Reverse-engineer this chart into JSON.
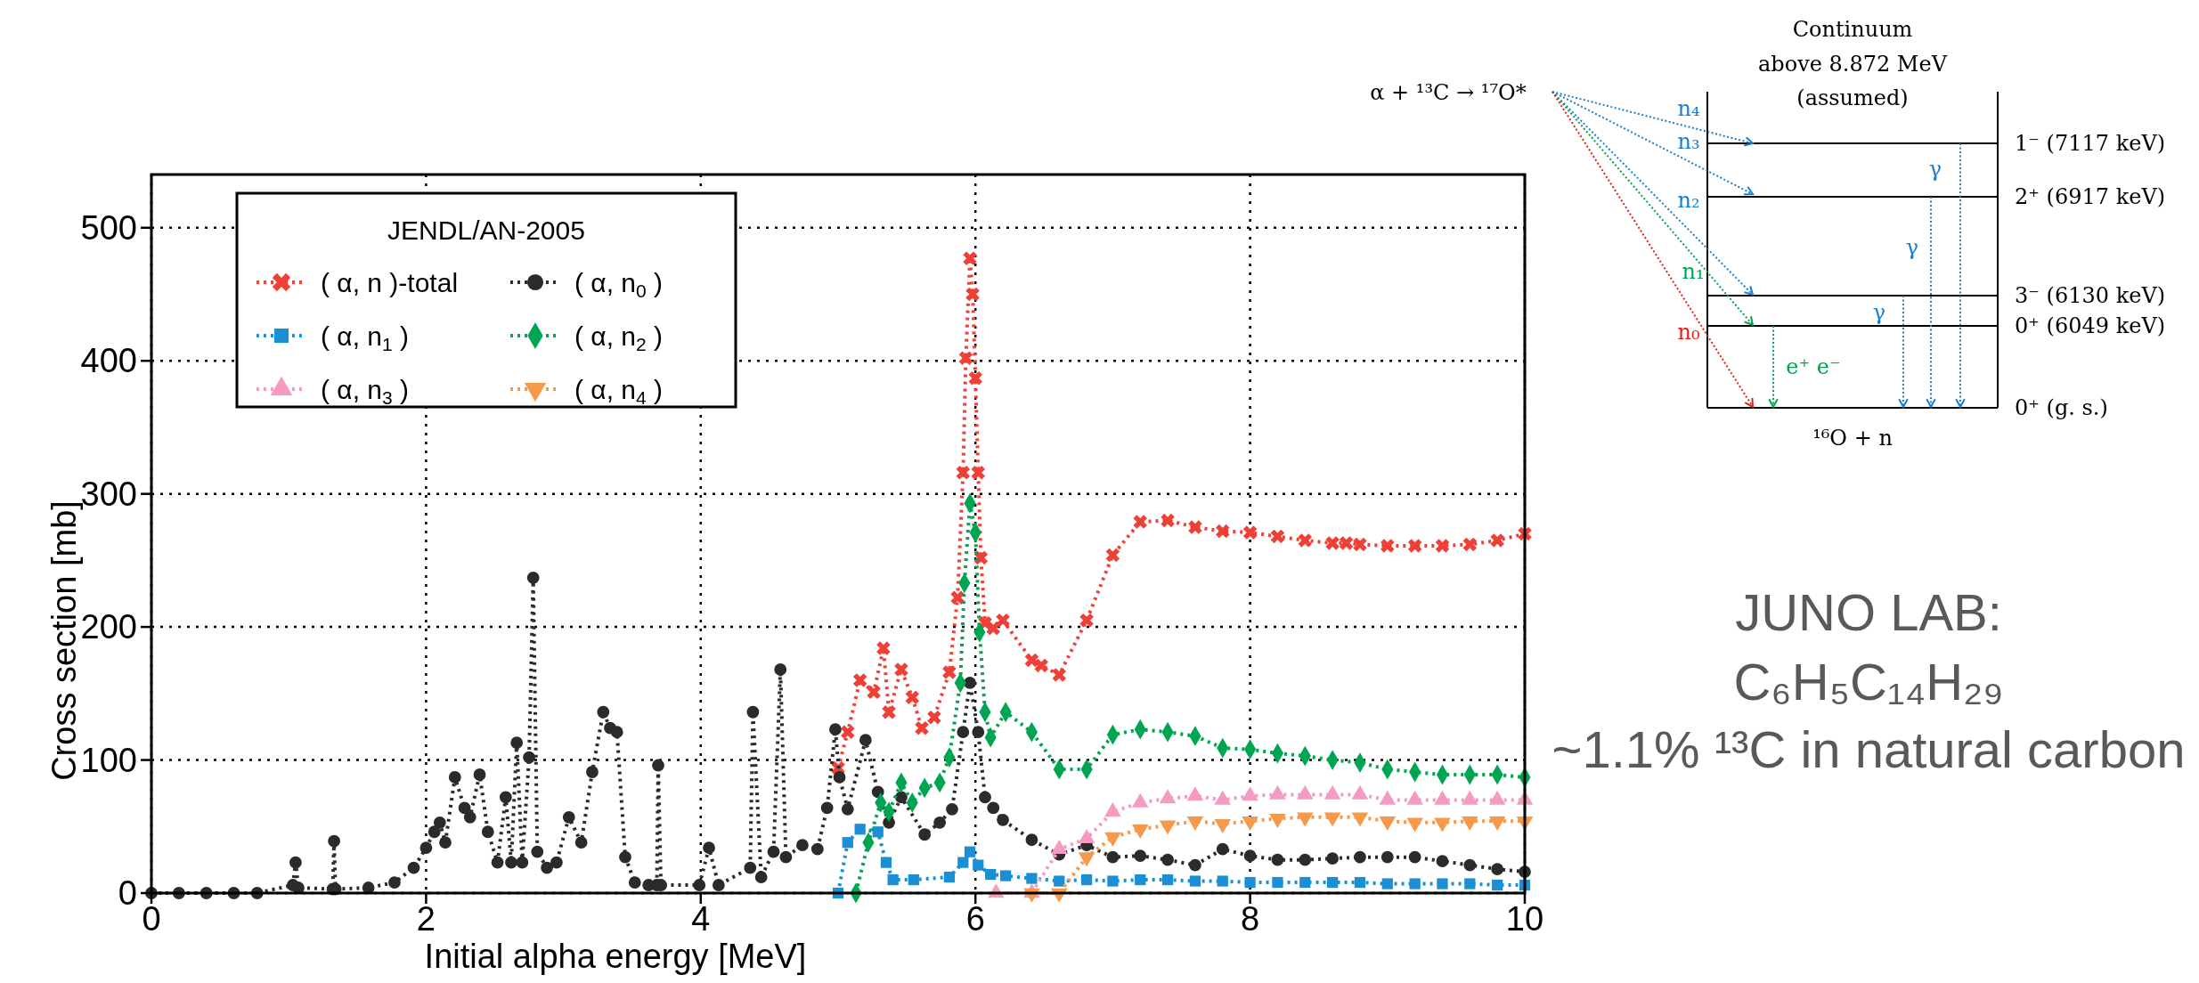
{
  "chart_data": [
    {
      "type": "line",
      "xlabel": "Initial alpha energy [MeV]",
      "ylabel": "Cross section [mb]",
      "legend_title": "JENDL/AN-2005",
      "legend": "top left",
      "grid": true,
      "line_style": "dotted",
      "xlim": [
        0,
        10
      ],
      "ylim": [
        0,
        540
      ],
      "xticks": [
        0,
        2,
        4,
        6,
        8,
        10
      ],
      "yticks": [
        0,
        100,
        200,
        300,
        400,
        500
      ],
      "series": [
        {
          "name": "( α, n )-total",
          "color": "#ee4036",
          "marker": "cross",
          "x": [
            5.0,
            5.07,
            5.16,
            5.26,
            5.33,
            5.37,
            5.46,
            5.54,
            5.61,
            5.7,
            5.81,
            5.87,
            5.91,
            5.93,
            5.96,
            5.98,
            6.0,
            6.02,
            6.04,
            6.07,
            6.13,
            6.2,
            6.41,
            6.48,
            6.61,
            6.81,
            7.0,
            7.2,
            7.4,
            7.6,
            7.8,
            8.0,
            8.2,
            8.4,
            8.6,
            8.7,
            8.8,
            9.0,
            9.2,
            9.4,
            9.6,
            9.8,
            10.0
          ],
          "values": [
            94,
            121,
            160,
            151,
            184,
            136,
            168,
            147,
            124,
            132,
            166,
            222,
            316,
            402,
            477,
            450,
            387,
            316,
            252,
            203,
            199,
            205,
            175,
            171,
            164,
            205,
            254,
            279,
            280,
            275,
            272,
            271,
            268,
            265,
            263,
            263,
            262,
            261,
            261,
            261,
            262,
            265,
            270
          ]
        },
        {
          "name": "( α, n$_{0}$ )",
          "color": "#2b2b2b",
          "marker": "circle",
          "x": [
            0,
            0.2,
            0.4,
            0.6,
            0.77,
            1.03,
            1.05,
            1.07,
            1.32,
            1.33,
            1.34,
            1.58,
            1.77,
            1.91,
            2.0,
            2.06,
            2.1,
            2.14,
            2.21,
            2.28,
            2.32,
            2.39,
            2.45,
            2.52,
            2.58,
            2.62,
            2.66,
            2.7,
            2.75,
            2.78,
            2.81,
            2.88,
            2.95,
            3.04,
            3.13,
            3.21,
            3.29,
            3.34,
            3.39,
            3.45,
            3.52,
            3.62,
            3.68,
            3.69,
            3.71,
            3.99,
            4.06,
            4.13,
            4.36,
            4.38,
            4.44,
            4.53,
            4.58,
            4.62,
            4.74,
            4.85,
            4.92,
            4.98,
            5.01,
            5.07,
            5.2,
            5.29,
            5.37,
            5.46,
            5.63,
            5.74,
            5.83,
            5.91,
            5.96,
            6.02,
            6.07,
            6.13,
            6.2,
            6.41,
            6.61,
            6.81,
            7.0,
            7.2,
            7.4,
            7.6,
            7.8,
            8.0,
            8.2,
            8.4,
            8.6,
            8.8,
            9.0,
            9.2,
            9.4,
            9.6,
            9.8,
            10.0
          ],
          "values": [
            0,
            0,
            0,
            0,
            0,
            6,
            23,
            4,
            3,
            39,
            3,
            4,
            8,
            19,
            34,
            46,
            53,
            38,
            87,
            64,
            57,
            89,
            46,
            23,
            72,
            23,
            113,
            23,
            102,
            237,
            31,
            19,
            23,
            57,
            38,
            91,
            136,
            124,
            121,
            27,
            8,
            6,
            6,
            96,
            6,
            6,
            34,
            6,
            19,
            136,
            12,
            31,
            168,
            27,
            36,
            33,
            64,
            123,
            87,
            63,
            115,
            76,
            53,
            72,
            44,
            53,
            63,
            121,
            158,
            121,
            72,
            64,
            55,
            40,
            29,
            36,
            27,
            28,
            25,
            21,
            33,
            28,
            25,
            25,
            26,
            27,
            27,
            27,
            24,
            21,
            18,
            16
          ]
        },
        {
          "name": "( α, n$_{1}$ )",
          "color": "#1b8fd6",
          "marker": "square",
          "x": [
            5.0,
            5.07,
            5.16,
            5.29,
            5.35,
            5.4,
            5.55,
            5.81,
            5.91,
            5.96,
            6.02,
            6.11,
            6.22,
            6.41,
            6.61,
            6.81,
            7.0,
            7.2,
            7.4,
            7.6,
            7.8,
            8.0,
            8.2,
            8.4,
            8.6,
            8.8,
            9.0,
            9.2,
            9.4,
            9.6,
            9.8,
            10.0
          ],
          "values": [
            0,
            38,
            48,
            46,
            23,
            10,
            10,
            12,
            23,
            31,
            21,
            14,
            13,
            11,
            9,
            10,
            9,
            10,
            10,
            9,
            9,
            8,
            8,
            8,
            8,
            8,
            7,
            7,
            7,
            7,
            6,
            6
          ]
        },
        {
          "name": "( α, n$_{2}$ )",
          "color": "#00a551",
          "marker": "diamond",
          "x": [
            5.13,
            5.22,
            5.31,
            5.37,
            5.46,
            5.54,
            5.63,
            5.74,
            5.81,
            5.89,
            5.92,
            5.96,
            6.0,
            6.03,
            6.07,
            6.11,
            6.22,
            6.41,
            6.61,
            6.81,
            7.0,
            7.2,
            7.4,
            7.6,
            7.8,
            8.0,
            8.2,
            8.4,
            8.6,
            8.8,
            9.0,
            9.2,
            9.4,
            9.6,
            9.8,
            10.0
          ],
          "values": [
            0,
            38,
            68,
            61,
            83,
            68,
            79,
            83,
            102,
            158,
            233,
            293,
            271,
            196,
            136,
            117,
            136,
            121,
            93,
            93,
            119,
            123,
            121,
            118,
            109,
            108,
            105,
            103,
            100,
            98,
            93,
            91,
            89,
            89,
            89,
            87
          ]
        },
        {
          "name": "( α, n$_{3}$ )",
          "color": "#f59ac2",
          "marker": "triangle",
          "x": [
            6.15,
            6.41,
            6.61,
            6.81,
            7.0,
            7.2,
            7.4,
            7.6,
            7.8,
            8.0,
            8.2,
            8.4,
            8.6,
            8.8,
            9.0,
            9.2,
            9.4,
            9.6,
            9.8,
            10.0
          ],
          "values": [
            0,
            0,
            33,
            41,
            61,
            68,
            71,
            73,
            70,
            73,
            74,
            74,
            74,
            74,
            70,
            70,
            70,
            70,
            70,
            70
          ]
        },
        {
          "name": "( α, n$_{4}$ )",
          "color": "#f7994a",
          "marker": "triangle-down",
          "x": [
            6.41,
            6.61,
            6.81,
            7.0,
            7.2,
            7.4,
            7.6,
            7.8,
            8.0,
            8.2,
            8.4,
            8.6,
            8.8,
            9.0,
            9.2,
            9.4,
            9.6,
            9.8,
            10.0
          ],
          "values": [
            0,
            0,
            27,
            42,
            48,
            51,
            54,
            52,
            54,
            56,
            57,
            57,
            57,
            54,
            53,
            53,
            54,
            54,
            54
          ]
        }
      ]
    },
    {
      "type": "other",
      "annotations": [
        "α + ¹³C → ¹⁷O*",
        "Continuum",
        "above 8.872 MeV",
        "(assumed)",
        "1⁻ (7117 keV)",
        "2⁺ (6917 keV)",
        "3⁻ (6130 keV)",
        "0⁺ (6049 keV)",
        "0⁺ (g. s.)",
        "¹⁶O + n",
        "n₄",
        "n₃",
        "n₂",
        "n₁",
        "n₀",
        "γ",
        "γ",
        "γ",
        "e⁺ e⁻",
        "JUNO LAB:",
        "C₆H₅C₁₄H₂₉",
        "~1.1% ¹³C in natural carbon"
      ]
    }
  ]
}
